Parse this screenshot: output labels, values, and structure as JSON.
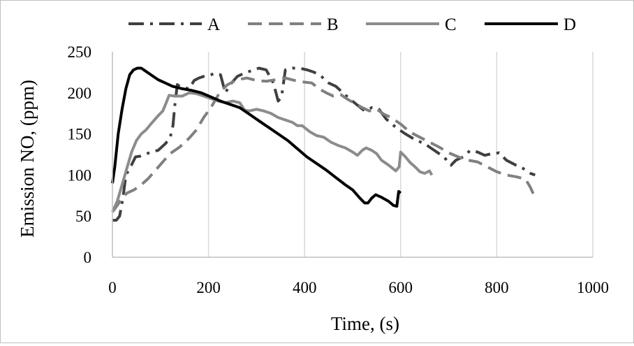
{
  "chart_data": {
    "type": "line",
    "title": "",
    "xlabel": "Time, (s)",
    "ylabel": "Emission NO, (ppm)",
    "xlim": [
      0,
      1000
    ],
    "ylim": [
      0,
      250
    ],
    "xticks": [
      "0",
      "200",
      "400",
      "600",
      "800",
      "1000"
    ],
    "yticks": [
      "0",
      "50",
      "100",
      "150",
      "200",
      "250"
    ],
    "grid": "vertical",
    "legend": "top",
    "series": [
      {
        "name": "A",
        "color": "#404040",
        "dash": "dash-dot",
        "points": [
          [
            0,
            45
          ],
          [
            8,
            45
          ],
          [
            15,
            50
          ],
          [
            22,
            72
          ],
          [
            28,
            100
          ],
          [
            38,
            110
          ],
          [
            48,
            122
          ],
          [
            58,
            123
          ],
          [
            68,
            125
          ],
          [
            80,
            128
          ],
          [
            95,
            130
          ],
          [
            110,
            138
          ],
          [
            120,
            145
          ],
          [
            126,
            160
          ],
          [
            130,
            185
          ],
          [
            135,
            210
          ],
          [
            140,
            208
          ],
          [
            150,
            206
          ],
          [
            160,
            205
          ],
          [
            170,
            215
          ],
          [
            180,
            218
          ],
          [
            190,
            220
          ],
          [
            200,
            221
          ],
          [
            215,
            224
          ],
          [
            225,
            222
          ],
          [
            235,
            200
          ],
          [
            245,
            210
          ],
          [
            260,
            220
          ],
          [
            275,
            224
          ],
          [
            290,
            227
          ],
          [
            305,
            230
          ],
          [
            320,
            228
          ],
          [
            335,
            212
          ],
          [
            345,
            190
          ],
          [
            352,
            195
          ],
          [
            360,
            228
          ],
          [
            375,
            230
          ],
          [
            390,
            230
          ],
          [
            405,
            228
          ],
          [
            420,
            225
          ],
          [
            435,
            220
          ],
          [
            450,
            212
          ],
          [
            465,
            208
          ],
          [
            480,
            200
          ],
          [
            495,
            192
          ],
          [
            510,
            185
          ],
          [
            525,
            178
          ],
          [
            540,
            182
          ],
          [
            555,
            180
          ],
          [
            570,
            168
          ],
          [
            590,
            158
          ],
          [
            610,
            150
          ],
          [
            630,
            143
          ],
          [
            650,
            138
          ],
          [
            670,
            130
          ],
          [
            690,
            122
          ],
          [
            705,
            112
          ],
          [
            715,
            118
          ],
          [
            730,
            122
          ],
          [
            745,
            130
          ],
          [
            760,
            128
          ],
          [
            775,
            124
          ],
          [
            790,
            126
          ],
          [
            805,
            127
          ],
          [
            820,
            118
          ],
          [
            840,
            112
          ],
          [
            855,
            108
          ],
          [
            870,
            102
          ],
          [
            880,
            100
          ]
        ]
      },
      {
        "name": "B",
        "color": "#808080",
        "dash": "dash",
        "points": [
          [
            0,
            55
          ],
          [
            10,
            63
          ],
          [
            20,
            72
          ],
          [
            30,
            78
          ],
          [
            45,
            82
          ],
          [
            60,
            88
          ],
          [
            75,
            96
          ],
          [
            90,
            106
          ],
          [
            105,
            116
          ],
          [
            120,
            126
          ],
          [
            140,
            134
          ],
          [
            160,
            145
          ],
          [
            175,
            155
          ],
          [
            190,
            170
          ],
          [
            205,
            182
          ],
          [
            215,
            192
          ],
          [
            225,
            202
          ],
          [
            240,
            210
          ],
          [
            260,
            216
          ],
          [
            280,
            218
          ],
          [
            300,
            215
          ],
          [
            320,
            214
          ],
          [
            340,
            216
          ],
          [
            360,
            218
          ],
          [
            380,
            215
          ],
          [
            400,
            213
          ],
          [
            415,
            212
          ],
          [
            430,
            205
          ],
          [
            445,
            200
          ],
          [
            460,
            196
          ],
          [
            475,
            198
          ],
          [
            490,
            192
          ],
          [
            505,
            187
          ],
          [
            520,
            182
          ],
          [
            535,
            178
          ],
          [
            550,
            180
          ],
          [
            565,
            174
          ],
          [
            580,
            170
          ],
          [
            600,
            162
          ],
          [
            620,
            152
          ],
          [
            640,
            146
          ],
          [
            660,
            140
          ],
          [
            680,
            134
          ],
          [
            700,
            127
          ],
          [
            720,
            122
          ],
          [
            740,
            118
          ],
          [
            760,
            116
          ],
          [
            780,
            110
          ],
          [
            800,
            104
          ],
          [
            820,
            100
          ],
          [
            840,
            98
          ],
          [
            860,
            95
          ],
          [
            870,
            85
          ],
          [
            880,
            72
          ]
        ]
      },
      {
        "name": "C",
        "color": "#8c8c8c",
        "dash": "solid",
        "points": [
          [
            0,
            55
          ],
          [
            10,
            68
          ],
          [
            20,
            88
          ],
          [
            30,
            108
          ],
          [
            40,
            128
          ],
          [
            50,
            142
          ],
          [
            60,
            150
          ],
          [
            70,
            155
          ],
          [
            80,
            162
          ],
          [
            95,
            172
          ],
          [
            105,
            178
          ],
          [
            112,
            188
          ],
          [
            118,
            197
          ],
          [
            130,
            196
          ],
          [
            145,
            196
          ],
          [
            160,
            200
          ],
          [
            175,
            199
          ],
          [
            190,
            196
          ],
          [
            205,
            193
          ],
          [
            220,
            190
          ],
          [
            235,
            188
          ],
          [
            250,
            190
          ],
          [
            265,
            188
          ],
          [
            275,
            179
          ],
          [
            285,
            178
          ],
          [
            300,
            180
          ],
          [
            315,
            178
          ],
          [
            330,
            175
          ],
          [
            345,
            170
          ],
          [
            360,
            167
          ],
          [
            375,
            164
          ],
          [
            385,
            160
          ],
          [
            395,
            160
          ],
          [
            410,
            153
          ],
          [
            425,
            148
          ],
          [
            440,
            146
          ],
          [
            455,
            140
          ],
          [
            470,
            136
          ],
          [
            485,
            133
          ],
          [
            500,
            128
          ],
          [
            510,
            124
          ],
          [
            520,
            130
          ],
          [
            528,
            133
          ],
          [
            540,
            130
          ],
          [
            550,
            126
          ],
          [
            560,
            118
          ],
          [
            575,
            112
          ],
          [
            590,
            105
          ],
          [
            597,
            110
          ],
          [
            600,
            128
          ],
          [
            610,
            122
          ],
          [
            620,
            115
          ],
          [
            630,
            110
          ],
          [
            640,
            104
          ],
          [
            650,
            102
          ],
          [
            660,
            105
          ],
          [
            665,
            100
          ]
        ]
      },
      {
        "name": "D",
        "color": "#000000",
        "dash": "solid",
        "points": [
          [
            0,
            90
          ],
          [
            5,
            110
          ],
          [
            12,
            150
          ],
          [
            20,
            180
          ],
          [
            28,
            205
          ],
          [
            36,
            222
          ],
          [
            44,
            228
          ],
          [
            52,
            230
          ],
          [
            60,
            230
          ],
          [
            70,
            226
          ],
          [
            80,
            222
          ],
          [
            95,
            216
          ],
          [
            110,
            212
          ],
          [
            125,
            208
          ],
          [
            145,
            205
          ],
          [
            165,
            203
          ],
          [
            185,
            200
          ],
          [
            205,
            195
          ],
          [
            225,
            190
          ],
          [
            245,
            186
          ],
          [
            265,
            182
          ],
          [
            285,
            174
          ],
          [
            305,
            166
          ],
          [
            325,
            158
          ],
          [
            345,
            150
          ],
          [
            365,
            142
          ],
          [
            385,
            132
          ],
          [
            405,
            122
          ],
          [
            425,
            114
          ],
          [
            445,
            106
          ],
          [
            465,
            97
          ],
          [
            485,
            88
          ],
          [
            500,
            82
          ],
          [
            515,
            72
          ],
          [
            525,
            66
          ],
          [
            532,
            66
          ],
          [
            540,
            72
          ],
          [
            548,
            76
          ],
          [
            560,
            73
          ],
          [
            575,
            68
          ],
          [
            585,
            63
          ],
          [
            592,
            62
          ],
          [
            596,
            80
          ],
          [
            600,
            78
          ]
        ]
      }
    ]
  }
}
